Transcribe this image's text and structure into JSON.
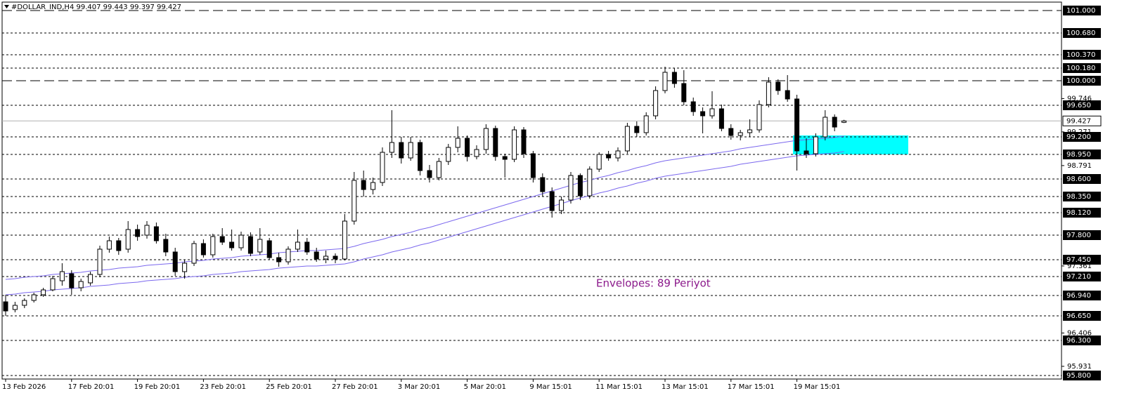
{
  "chart_data": {
    "type": "candlestick",
    "title": "#DOLLAR_IND,H4  99.407 99.443 99.397 99.427",
    "annotation": "Envelopes: 89 Periyot",
    "annotation_color": "#8b1a8b",
    "categories": [
      "13 Feb 2026",
      null,
      null,
      null,
      null,
      null,
      null,
      "17 Feb 20:01",
      null,
      null,
      null,
      null,
      null,
      null,
      "19 Feb 20:01",
      null,
      null,
      null,
      null,
      null,
      null,
      "23 Feb 20:01",
      null,
      null,
      null,
      null,
      null,
      null,
      "25 Feb 20:01",
      null,
      null,
      null,
      null,
      null,
      null,
      "27 Feb 20:01",
      null,
      null,
      null,
      null,
      null,
      null,
      "3 Mar 20:01",
      null,
      null,
      null,
      null,
      null,
      null,
      "5 Mar 20:01",
      null,
      null,
      null,
      null,
      null,
      null,
      "9 Mar 15:01",
      null,
      null,
      null,
      null,
      null,
      null,
      "11 Mar 15:01",
      null,
      null,
      null,
      null,
      null,
      null,
      "13 Mar 15:01",
      null,
      null,
      null,
      null,
      null,
      null,
      "17 Mar 15:01",
      null,
      null,
      null,
      null,
      null,
      null,
      "19 Mar 15:01",
      null,
      null,
      null,
      null,
      null
    ],
    "open": [
      96.85,
      96.74,
      96.8,
      96.87,
      96.95,
      97.02,
      97.15,
      97.25,
      97.05,
      97.12,
      97.24,
      97.6,
      97.72,
      97.6,
      97.88,
      97.8,
      97.92,
      97.74,
      97.56,
      97.28,
      97.4,
      97.68,
      97.52,
      97.78,
      97.7,
      97.62,
      97.78,
      97.56,
      97.72,
      97.48,
      97.42,
      97.6,
      97.7,
      97.56,
      97.46,
      97.5,
      97.46,
      98.0,
      98.58,
      98.45,
      98.55,
      98.98,
      99.12,
      98.9,
      99.12,
      98.72,
      98.62,
      98.85,
      99.05,
      99.18,
      98.92,
      99.02,
      99.32,
      98.92,
      98.88,
      99.3,
      98.96,
      98.62,
      98.42,
      98.15,
      98.3,
      98.65,
      98.36,
      98.74,
      98.95,
      98.9,
      99.0,
      99.35,
      99.26,
      99.5,
      99.86,
      100.12,
      99.96,
      99.7,
      99.56,
      99.5,
      99.6,
      99.32,
      99.22,
      99.26,
      99.3,
      99.66,
      99.98,
      99.86,
      99.74,
      99.0,
      98.96,
      99.2,
      99.48,
      99.407
    ],
    "high": [
      96.95,
      96.85,
      96.9,
      96.98,
      97.05,
      97.22,
      97.4,
      97.3,
      97.18,
      97.28,
      97.65,
      97.78,
      97.76,
      98.0,
      97.95,
      98.0,
      97.98,
      97.82,
      97.62,
      97.45,
      97.72,
      97.74,
      97.82,
      97.9,
      97.88,
      97.85,
      97.84,
      97.9,
      97.76,
      97.55,
      97.64,
      97.88,
      97.76,
      97.62,
      97.58,
      97.54,
      98.1,
      98.7,
      98.72,
      98.62,
      99.05,
      99.58,
      99.2,
      99.2,
      99.16,
      98.8,
      98.9,
      99.1,
      99.35,
      99.22,
      99.08,
      99.38,
      99.36,
      98.96,
      99.35,
      99.34,
      99.0,
      98.68,
      98.48,
      98.35,
      98.7,
      98.68,
      98.78,
      98.98,
      99.0,
      99.05,
      99.4,
      99.42,
      99.55,
      99.92,
      100.2,
      100.18,
      100.15,
      99.76,
      99.62,
      99.85,
      99.66,
      99.38,
      99.3,
      99.45,
      99.72,
      100.05,
      100.02,
      100.08,
      99.8,
      99.18,
      99.25,
      99.58,
      99.52,
      99.443
    ],
    "low": [
      96.65,
      96.7,
      96.76,
      96.84,
      96.92,
      97.0,
      97.08,
      96.95,
      97.0,
      97.08,
      97.2,
      97.55,
      97.52,
      97.55,
      97.72,
      97.75,
      97.68,
      97.5,
      97.22,
      97.18,
      97.36,
      97.48,
      97.48,
      97.66,
      97.58,
      97.58,
      97.5,
      97.52,
      97.45,
      97.35,
      97.38,
      97.56,
      97.52,
      97.42,
      97.4,
      97.4,
      97.44,
      97.95,
      98.35,
      98.38,
      98.5,
      98.9,
      98.82,
      98.86,
      98.65,
      98.55,
      98.58,
      98.8,
      98.98,
      98.85,
      98.88,
      98.96,
      98.86,
      98.62,
      98.84,
      98.9,
      98.55,
      98.35,
      98.05,
      98.1,
      98.25,
      98.3,
      98.32,
      98.7,
      98.86,
      98.85,
      98.96,
      99.2,
      99.22,
      99.45,
      99.82,
      99.9,
      99.65,
      99.5,
      99.25,
      99.46,
      99.28,
      99.16,
      99.15,
      99.2,
      99.26,
      99.62,
      99.8,
      99.7,
      98.72,
      98.9,
      98.92,
      99.15,
      99.28,
      99.397
    ],
    "close": [
      96.72,
      96.8,
      96.87,
      96.95,
      97.02,
      97.18,
      97.28,
      97.05,
      97.14,
      97.24,
      97.6,
      97.72,
      97.58,
      97.88,
      97.78,
      97.94,
      97.72,
      97.56,
      97.28,
      97.4,
      97.68,
      97.52,
      97.78,
      97.7,
      97.62,
      97.8,
      97.54,
      97.74,
      97.48,
      97.42,
      97.6,
      97.7,
      97.56,
      97.46,
      97.5,
      97.46,
      98.0,
      98.58,
      98.45,
      98.55,
      98.98,
      99.12,
      98.9,
      99.12,
      98.72,
      98.62,
      98.85,
      99.05,
      99.18,
      98.92,
      99.02,
      99.32,
      98.92,
      98.88,
      99.3,
      98.96,
      98.62,
      98.42,
      98.15,
      98.3,
      98.65,
      98.36,
      98.74,
      98.95,
      98.9,
      99.0,
      99.35,
      99.26,
      99.5,
      99.86,
      100.12,
      99.96,
      99.7,
      99.56,
      99.5,
      99.6,
      99.32,
      99.22,
      99.26,
      99.3,
      99.66,
      99.98,
      99.86,
      99.74,
      99.0,
      98.96,
      99.2,
      99.48,
      99.34,
      99.427
    ],
    "series": [
      {
        "color": "#7b68ee",
        "values": [
          97.17,
          97.18,
          97.2,
          97.21,
          97.22,
          97.24,
          97.25,
          97.26,
          97.27,
          97.29,
          97.3,
          97.31,
          97.33,
          97.34,
          97.35,
          97.37,
          97.38,
          97.39,
          97.4,
          97.42,
          97.43,
          97.44,
          97.46,
          97.47,
          97.48,
          97.5,
          97.51,
          97.52,
          97.53,
          97.55,
          97.56,
          97.57,
          97.58,
          97.58,
          97.59,
          97.6,
          97.61,
          97.64,
          97.68,
          97.71,
          97.74,
          97.78,
          97.81,
          97.84,
          97.88,
          97.91,
          97.95,
          97.99,
          98.03,
          98.07,
          98.11,
          98.15,
          98.19,
          98.23,
          98.27,
          98.31,
          98.35,
          98.39,
          98.43,
          98.47,
          98.51,
          98.55,
          98.58,
          98.62,
          98.65,
          98.69,
          98.72,
          98.76,
          98.79,
          98.83,
          98.86,
          98.88,
          98.9,
          98.92,
          98.94,
          98.96,
          98.98,
          99.0,
          99.03,
          99.05,
          99.07,
          99.09,
          99.11,
          99.13,
          99.15,
          99.16,
          99.17,
          99.18,
          99.19,
          99.21
        ]
      },
      {
        "color": "#7b68ee",
        "values": [
          96.95,
          96.96,
          96.98,
          96.99,
          97.0,
          97.02,
          97.03,
          97.04,
          97.05,
          97.07,
          97.08,
          97.09,
          97.11,
          97.12,
          97.13,
          97.15,
          97.16,
          97.17,
          97.18,
          97.2,
          97.21,
          97.22,
          97.24,
          97.25,
          97.26,
          97.28,
          97.29,
          97.3,
          97.31,
          97.33,
          97.34,
          97.35,
          97.36,
          97.36,
          97.37,
          97.38,
          97.39,
          97.42,
          97.46,
          97.49,
          97.52,
          97.56,
          97.59,
          97.62,
          97.66,
          97.69,
          97.73,
          97.77,
          97.81,
          97.85,
          97.89,
          97.93,
          97.97,
          98.01,
          98.05,
          98.09,
          98.13,
          98.17,
          98.21,
          98.25,
          98.29,
          98.33,
          98.36,
          98.4,
          98.43,
          98.47,
          98.5,
          98.54,
          98.57,
          98.61,
          98.64,
          98.66,
          98.68,
          98.7,
          98.72,
          98.74,
          98.76,
          98.78,
          98.81,
          98.83,
          98.85,
          98.87,
          98.89,
          98.91,
          98.93,
          98.94,
          98.95,
          98.96,
          98.97,
          98.99
        ]
      }
    ],
    "ylim": [
      95.75,
      101.12
    ],
    "yticks": [
      99.746,
      99.271,
      98.791,
      97.361,
      96.406,
      95.931
    ],
    "levels": [
      {
        "value": 101,
        "label": "101.000",
        "dash": "long"
      },
      {
        "value": 100.68,
        "label": "100.680",
        "dash": "short"
      },
      {
        "value": 100.37,
        "label": "100.370",
        "dash": "short"
      },
      {
        "value": 100.18,
        "label": "100.180",
        "dash": "short"
      },
      {
        "value": 100,
        "label": "100.000",
        "dash": "long"
      },
      {
        "value": 99.65,
        "label": "99.650",
        "dash": "short"
      },
      {
        "value": 99.2,
        "label": "99.200",
        "dash": "short"
      },
      {
        "value": 98.95,
        "label": "98.950",
        "dash": "short"
      },
      {
        "value": 98.6,
        "label": "98.600",
        "dash": "short"
      },
      {
        "value": 98.35,
        "label": "98.350",
        "dash": "short"
      },
      {
        "value": 98.12,
        "label": "98.120",
        "dash": "short"
      },
      {
        "value": 97.8,
        "label": "97.800",
        "dash": "short"
      },
      {
        "value": 97.45,
        "label": "97.450",
        "dash": "short"
      },
      {
        "value": 97.21,
        "label": "97.210",
        "dash": "short"
      },
      {
        "value": 96.94,
        "label": "96.940",
        "dash": "short"
      },
      {
        "value": 96.65,
        "label": "96.650",
        "dash": "short"
      },
      {
        "value": 96.3,
        "label": "96.300",
        "dash": "short"
      },
      {
        "value": 95.8,
        "label": "95.800",
        "dash": "short"
      }
    ],
    "last_price": 99.427,
    "zone": [
      98.95,
      99.22
    ],
    "zone_color": "#00ffff",
    "bull_color": "#ffffff",
    "bear_color": "#000000"
  }
}
